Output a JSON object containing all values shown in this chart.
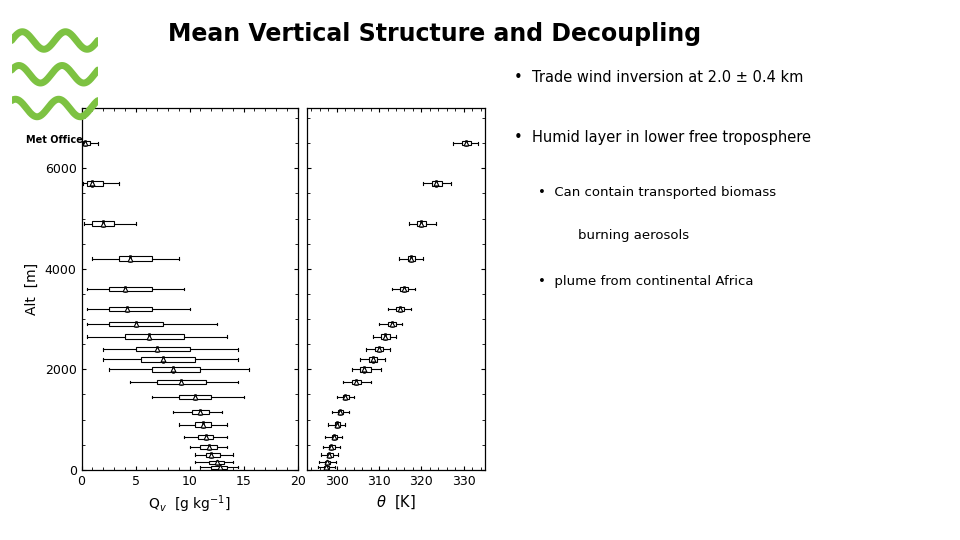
{
  "title": "Mean Vertical Structure and Decoupling",
  "background": "#ffffff",
  "bullet1": "Trade wind inversion at 2.0 ± 0.4 km",
  "bullet2": "Humid layer in lower free troposphere",
  "sub_bullet1": "Can contain transported biomass",
  "sub_bullet1b": "burning aerosols",
  "sub_bullet2": "plume from continental Africa",
  "qv_altitudes": [
    50,
    150,
    300,
    450,
    650,
    900,
    1150,
    1450,
    1750,
    2000,
    2200,
    2400,
    2650,
    2900,
    3200,
    3600,
    4200,
    4900,
    5700,
    6500
  ],
  "qv_median": [
    12.8,
    12.5,
    12.0,
    11.8,
    11.5,
    11.2,
    11.0,
    10.5,
    9.2,
    8.5,
    7.5,
    7.0,
    6.2,
    5.0,
    4.2,
    4.0,
    4.5,
    2.0,
    1.0,
    0.3
  ],
  "qv_q1": [
    12.0,
    11.8,
    11.5,
    11.0,
    10.8,
    10.5,
    10.2,
    9.0,
    7.0,
    6.5,
    5.5,
    5.0,
    4.0,
    2.5,
    2.5,
    2.5,
    3.5,
    1.0,
    0.5,
    0.1
  ],
  "qv_q3": [
    13.5,
    13.2,
    12.8,
    12.5,
    12.2,
    12.0,
    11.8,
    12.0,
    11.5,
    11.0,
    10.5,
    10.0,
    9.5,
    7.5,
    6.5,
    6.5,
    6.5,
    3.0,
    2.0,
    0.8
  ],
  "qv_whisker_lo": [
    11.0,
    10.5,
    10.5,
    10.0,
    9.5,
    9.0,
    8.5,
    6.5,
    4.5,
    2.5,
    2.0,
    2.0,
    0.5,
    0.5,
    0.5,
    0.5,
    1.0,
    0.2,
    0.1,
    0.05
  ],
  "qv_whisker_hi": [
    14.5,
    14.0,
    14.0,
    13.5,
    13.5,
    13.5,
    13.0,
    15.0,
    14.5,
    15.5,
    14.5,
    14.5,
    13.5,
    12.5,
    10.0,
    9.5,
    9.0,
    5.0,
    3.5,
    1.5
  ],
  "qv_mean": [
    12.8,
    12.5,
    12.0,
    11.8,
    11.5,
    11.2,
    11.0,
    10.5,
    9.2,
    8.5,
    7.5,
    7.0,
    6.2,
    5.0,
    4.2,
    4.0,
    4.5,
    2.0,
    1.0,
    0.3
  ],
  "theta_altitudes": [
    50,
    150,
    300,
    450,
    650,
    900,
    1150,
    1450,
    1750,
    2000,
    2200,
    2400,
    2650,
    2900,
    3200,
    3600,
    4200,
    4900,
    5700,
    6500
  ],
  "theta_median": [
    297.5,
    297.8,
    298.2,
    298.7,
    299.3,
    300.0,
    300.8,
    302.0,
    304.5,
    306.5,
    308.5,
    310.0,
    311.5,
    313.0,
    315.0,
    315.8,
    317.5,
    320.0,
    323.5,
    330.5
  ],
  "theta_q1": [
    297.0,
    297.3,
    297.7,
    298.2,
    298.8,
    299.5,
    300.3,
    301.5,
    303.5,
    305.5,
    307.5,
    309.0,
    310.5,
    312.0,
    314.0,
    315.0,
    316.8,
    319.0,
    322.5,
    329.5
  ],
  "theta_q3": [
    298.2,
    298.5,
    299.0,
    299.5,
    300.0,
    300.7,
    301.5,
    302.8,
    305.8,
    308.0,
    309.5,
    311.0,
    312.5,
    314.0,
    316.0,
    316.8,
    318.5,
    321.2,
    324.8,
    331.8
  ],
  "theta_whisker_lo": [
    295.5,
    295.8,
    296.2,
    296.7,
    297.3,
    298.0,
    298.8,
    300.0,
    301.5,
    303.5,
    305.5,
    307.0,
    308.5,
    310.0,
    312.0,
    313.0,
    314.8,
    317.0,
    320.5,
    327.5
  ],
  "theta_whisker_hi": [
    299.5,
    299.8,
    300.2,
    300.7,
    301.3,
    302.0,
    302.8,
    304.0,
    308.0,
    310.5,
    311.5,
    312.5,
    314.0,
    315.5,
    317.5,
    318.5,
    320.5,
    323.5,
    327.0,
    333.5
  ],
  "theta_mean": [
    297.5,
    297.8,
    298.2,
    298.7,
    299.3,
    300.0,
    300.8,
    302.0,
    304.5,
    306.5,
    308.5,
    310.0,
    311.5,
    313.0,
    315.0,
    315.8,
    317.5,
    320.0,
    323.5,
    330.5
  ],
  "ylabel": "Alt  [m]",
  "xlabel_qv": "Q$_v$  [g kg$^{-1}$]",
  "xlabel_theta": "$\\theta$  [K]",
  "qv_xlim": [
    0,
    20
  ],
  "theta_xlim": [
    293,
    335
  ],
  "alt_ylim": [
    0,
    7200
  ],
  "alt_yticks": [
    0,
    2000,
    4000,
    6000
  ],
  "alt_yticklabels": [
    "0",
    "2000",
    "4000",
    "6000"
  ],
  "qv_xticks": [
    0,
    5,
    10,
    15,
    20
  ],
  "theta_xticks": [
    300,
    310,
    320,
    330
  ]
}
